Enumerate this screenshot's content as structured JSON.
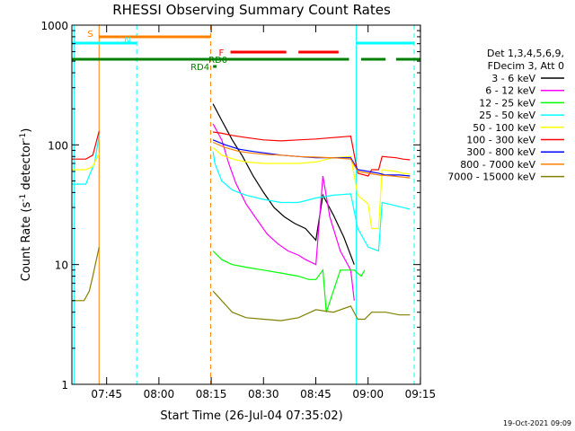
{
  "chart_data": {
    "type": "line",
    "title": "RHESSI Observing Summary Count Rates",
    "xlabel": "Start Time (26-Jul-04 07:35:02)",
    "ylabel_main": "Count Rate (s",
    "ylabel_sup1": "-1",
    "ylabel_mid": " detector",
    "ylabel_sup2": "-1",
    "ylabel_end": ")",
    "y_scale": "log",
    "ylim": [
      1,
      1000
    ],
    "xlim_minutes": [
      0,
      100
    ],
    "x_tick_labels": [
      {
        "label": "07:45",
        "minutes": 9.97
      },
      {
        "label": "08:00",
        "minutes": 24.97
      },
      {
        "label": "08:15",
        "minutes": 39.97
      },
      {
        "label": "08:30",
        "minutes": 54.97
      },
      {
        "label": "08:45",
        "minutes": 69.97
      },
      {
        "label": "09:00",
        "minutes": 84.97
      },
      {
        "label": "09:15",
        "minutes": 99.97
      }
    ],
    "y_tick_labels": [
      {
        "label": "1",
        "value": 1
      },
      {
        "label": "10",
        "value": 10
      },
      {
        "label": "100",
        "value": 100
      },
      {
        "label": "1000",
        "value": 1000
      }
    ],
    "grid": false,
    "legend": {
      "header": [
        "Det 1,3,4,5,6,9,",
        "FDecim 3, Att 0"
      ],
      "placement": "right"
    },
    "series": [
      {
        "name": "3 - 6 keV",
        "color": "#000000",
        "points": [
          [
            40.5,
            220
          ],
          [
            43,
            160
          ],
          [
            46,
            110
          ],
          [
            49,
            80
          ],
          [
            52,
            55
          ],
          [
            55,
            40
          ],
          [
            58,
            30
          ],
          [
            61,
            25
          ],
          [
            64,
            22
          ],
          [
            67,
            20
          ],
          [
            70,
            16
          ],
          [
            72,
            38
          ],
          [
            75,
            26
          ],
          [
            78,
            17
          ],
          [
            81,
            10
          ]
        ]
      },
      {
        "name": "6 - 12 keV",
        "color": "#ff00ff",
        "points": [
          [
            40.5,
            150
          ],
          [
            43,
            110
          ],
          [
            45,
            70
          ],
          [
            47,
            48
          ],
          [
            50,
            32
          ],
          [
            53,
            24
          ],
          [
            56,
            18
          ],
          [
            59,
            15
          ],
          [
            62,
            13
          ],
          [
            65,
            12
          ],
          [
            67,
            11
          ],
          [
            70,
            10
          ],
          [
            72,
            55
          ],
          [
            74,
            25
          ],
          [
            77,
            13
          ],
          [
            80,
            9
          ],
          [
            81,
            5
          ]
        ]
      },
      {
        "name": "12 - 25 keV",
        "color": "#00ff00",
        "points": [
          [
            40.5,
            13
          ],
          [
            43,
            11
          ],
          [
            46,
            10
          ],
          [
            50,
            9.5
          ],
          [
            55,
            9
          ],
          [
            60,
            8.5
          ],
          [
            65,
            8
          ],
          [
            68,
            7.5
          ],
          [
            70,
            7.5
          ],
          [
            72,
            9
          ],
          [
            73,
            4
          ],
          [
            77,
            9
          ],
          [
            81,
            9
          ],
          [
            83,
            8
          ],
          [
            84,
            9
          ]
        ]
      },
      {
        "name": "25 - 50 keV",
        "color": "#00ffff",
        "points": [
          [
            0,
            47
          ],
          [
            4,
            47
          ],
          [
            5.5,
            60
          ],
          [
            6.5,
            70
          ],
          [
            7.8,
            120
          ],
          [
            40.5,
            88
          ],
          [
            41,
            70
          ],
          [
            43,
            50
          ],
          [
            46,
            42
          ],
          [
            50,
            38
          ],
          [
            55,
            35
          ],
          [
            60,
            33
          ],
          [
            65,
            33
          ],
          [
            70,
            36
          ],
          [
            75,
            38
          ],
          [
            80,
            39
          ],
          [
            82,
            20
          ],
          [
            85,
            14
          ],
          [
            88,
            13
          ],
          [
            89,
            33
          ],
          [
            93,
            31
          ],
          [
            95,
            30
          ],
          [
            97,
            29
          ]
        ]
      },
      {
        "name": "50 - 100 keV",
        "color": "#ffff00",
        "points": [
          [
            0,
            62
          ],
          [
            4,
            62
          ],
          [
            6,
            66
          ],
          [
            7.8,
            85
          ],
          [
            40.5,
            95
          ],
          [
            43,
            82
          ],
          [
            47,
            75
          ],
          [
            50,
            72
          ],
          [
            55,
            70
          ],
          [
            60,
            70
          ],
          [
            65,
            70
          ],
          [
            70,
            72
          ],
          [
            75,
            78
          ],
          [
            80,
            80
          ],
          [
            82,
            38
          ],
          [
            85,
            32
          ],
          [
            86,
            20
          ],
          [
            88,
            20
          ],
          [
            89,
            62
          ],
          [
            93,
            60
          ],
          [
            95,
            58
          ],
          [
            97,
            57
          ]
        ]
      },
      {
        "name": "100 - 300 keV",
        "color": "#ff0000",
        "points": [
          [
            0,
            76
          ],
          [
            4,
            76
          ],
          [
            6,
            82
          ],
          [
            7.8,
            130
          ],
          [
            40.5,
            128
          ],
          [
            43,
            125
          ],
          [
            46,
            120
          ],
          [
            50,
            115
          ],
          [
            55,
            110
          ],
          [
            60,
            108
          ],
          [
            65,
            110
          ],
          [
            70,
            112
          ],
          [
            75,
            115
          ],
          [
            80,
            118
          ],
          [
            82,
            58
          ],
          [
            85,
            55
          ],
          [
            86,
            62
          ],
          [
            88,
            62
          ],
          [
            89,
            80
          ],
          [
            93,
            78
          ],
          [
            95,
            76
          ],
          [
            97,
            75
          ]
        ]
      },
      {
        "name": "300 - 800 keV",
        "color": "#0000ff",
        "points": [
          [
            40.5,
            110
          ],
          [
            44,
            100
          ],
          [
            48,
            92
          ],
          [
            52,
            88
          ],
          [
            56,
            85
          ],
          [
            60,
            82
          ],
          [
            65,
            80
          ],
          [
            70,
            78
          ],
          [
            75,
            78
          ],
          [
            80,
            78
          ],
          [
            82,
            62
          ],
          [
            85,
            60
          ],
          [
            88,
            58
          ],
          [
            90,
            56
          ],
          [
            94,
            56
          ],
          [
            97,
            55
          ]
        ]
      },
      {
        "name": "800 - 7000 keV",
        "color": "#ff8000",
        "points": [
          [
            40.5,
            105
          ],
          [
            44,
            95
          ],
          [
            48,
            88
          ],
          [
            52,
            85
          ],
          [
            56,
            83
          ],
          [
            60,
            82
          ],
          [
            65,
            80
          ],
          [
            70,
            79
          ],
          [
            75,
            78
          ],
          [
            80,
            76
          ],
          [
            82,
            60
          ],
          [
            85,
            58
          ],
          [
            88,
            56
          ],
          [
            92,
            55
          ],
          [
            97,
            53
          ]
        ]
      },
      {
        "name": "7000 - 15000 keV",
        "color": "#808000",
        "points": [
          [
            0,
            5
          ],
          [
            3.5,
            5
          ],
          [
            5,
            6
          ],
          [
            6,
            8
          ],
          [
            7.8,
            14
          ],
          [
            40.5,
            6
          ],
          [
            43,
            5
          ],
          [
            46,
            4
          ],
          [
            50,
            3.6
          ],
          [
            55,
            3.5
          ],
          [
            60,
            3.4
          ],
          [
            65,
            3.6
          ],
          [
            70,
            4.2
          ],
          [
            75,
            4
          ],
          [
            80,
            4.5
          ],
          [
            82,
            3.5
          ],
          [
            84,
            3.5
          ],
          [
            86,
            4
          ],
          [
            90,
            4
          ],
          [
            94,
            3.8
          ],
          [
            97,
            3.8
          ]
        ]
      }
    ],
    "time_markers": [
      {
        "minutes": 0.6,
        "color": "#00ffff",
        "style": "solid"
      },
      {
        "minutes": 7.8,
        "color": "#ff8000",
        "style": "solid"
      },
      {
        "minutes": 18.6,
        "color": "#00ffff",
        "style": "dashed"
      },
      {
        "minutes": 39.8,
        "color": "#ff8000",
        "style": "dashed"
      },
      {
        "minutes": 81.6,
        "color": "#00ffff",
        "style": "solid"
      },
      {
        "minutes": 98.2,
        "color": "#00ffff",
        "style": "dashed"
      }
    ],
    "flag_bars": [
      {
        "label": "S",
        "color": "#ff8000",
        "segments": [
          [
            7.8,
            39.8
          ]
        ]
      },
      {
        "label": "N",
        "color": "#00ffff",
        "segments": [
          [
            0,
            18.6
          ],
          [
            81.6,
            98.2
          ]
        ]
      },
      {
        "label": "F",
        "color": "#ff0000",
        "segments": [
          [
            45.5,
            61.5
          ],
          [
            65,
            76.5
          ]
        ]
      },
      {
        "label": "RD0",
        "color": "#008000",
        "segments": [
          [
            0,
            79.5
          ],
          [
            83,
            90
          ],
          [
            93,
            100
          ]
        ]
      },
      {
        "label": "RD4",
        "color": "#008000",
        "segments": [
          [
            40.5,
            41.5
          ]
        ]
      }
    ]
  },
  "footer_stamp": "19-Oct-2021 09:09"
}
